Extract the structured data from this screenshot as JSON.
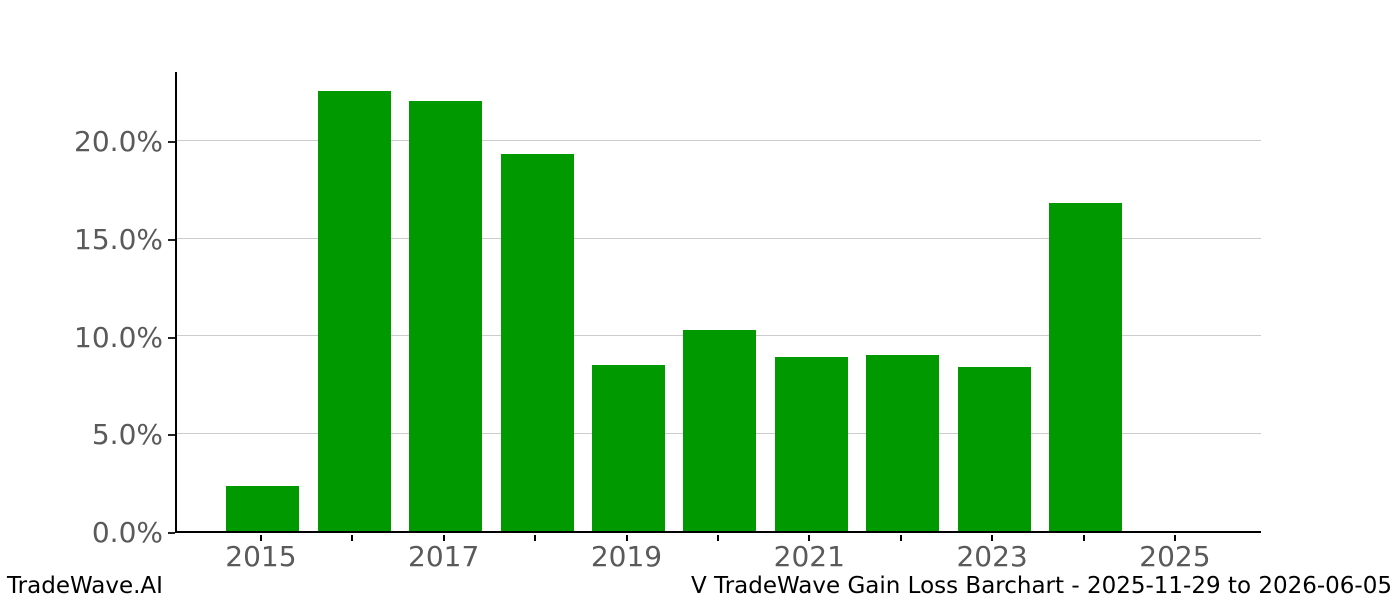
{
  "footer": {
    "left": "TradeWave.AI",
    "right": "V TradeWave Gain Loss Barchart - 2025-11-29 to 2026-06-05"
  },
  "chart_data": {
    "type": "bar",
    "title": "",
    "xlabel": "",
    "ylabel": "",
    "categories": [
      "2015",
      "2016",
      "2017",
      "2018",
      "2019",
      "2020",
      "2021",
      "2022",
      "2023",
      "2024",
      "2025"
    ],
    "values": [
      2.3,
      22.5,
      22.0,
      19.3,
      8.5,
      10.3,
      8.9,
      9.0,
      8.4,
      16.8,
      0.0
    ],
    "unit": "%",
    "ylim": [
      0,
      23.6
    ],
    "ytick_values": [
      0,
      5,
      10,
      15,
      20
    ],
    "ytick_labels": [
      "0.0%",
      "5.0%",
      "10.0%",
      "15.0%",
      "20.0%"
    ],
    "xtick_labels": [
      "2015",
      "2017",
      "2019",
      "2021",
      "2023",
      "2025"
    ],
    "grid": "horizontal",
    "legend": "none",
    "bar_color": "#009a00"
  },
  "colors": {
    "bar": "#009a00",
    "gridline": "#cccccc",
    "axis": "#000000",
    "tick_label": "#5a5a5a",
    "footer": "#000000",
    "background": "#ffffff"
  }
}
